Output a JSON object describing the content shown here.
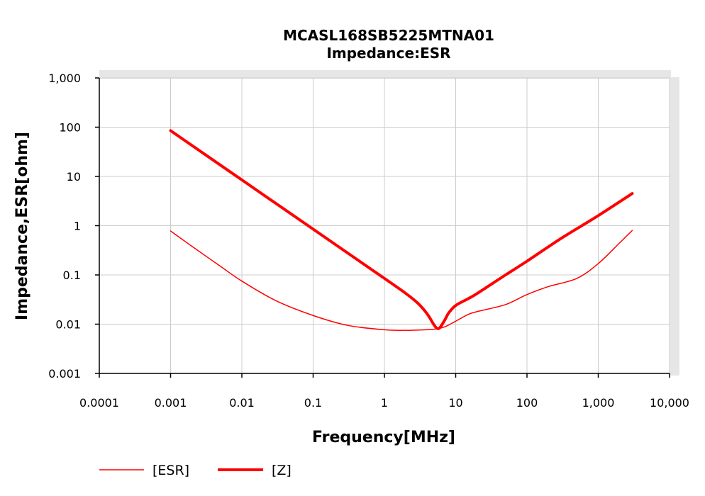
{
  "chart_data": {
    "type": "line",
    "title": "MCASL168SB5225MTNA01",
    "subtitle": "Impedance:ESR",
    "xlabel": "Frequency[MHz]",
    "ylabel": "Impedance,ESR[ohm]",
    "xscale": "log",
    "yscale": "log",
    "xlim": [
      0.0001,
      10000
    ],
    "ylim": [
      0.001,
      1000
    ],
    "x_ticks": [
      0.0001,
      0.001,
      0.01,
      0.1,
      1,
      10,
      100,
      1000,
      10000
    ],
    "x_tick_labels": [
      "0.0001",
      "0.001",
      "0.01",
      "0.1",
      "1",
      "10",
      "100",
      "1,000",
      "10,000"
    ],
    "y_ticks": [
      0.001,
      0.01,
      0.1,
      1,
      10,
      100,
      1000
    ],
    "y_tick_labels": [
      "0.001",
      "0.01",
      "0.1",
      "1",
      "10",
      "100",
      "1,000"
    ],
    "grid": true,
    "legend_position": "bottom-left",
    "series": [
      {
        "name": "[ESR]",
        "color": "#ff0000",
        "line_style": "thin",
        "x": [
          0.001,
          0.002,
          0.005,
          0.01,
          0.03,
          0.1,
          0.3,
          1,
          2,
          3,
          5,
          7,
          10,
          15,
          20,
          50,
          100,
          200,
          500,
          1000,
          2000,
          3000
        ],
        "y": [
          0.78,
          0.38,
          0.15,
          0.075,
          0.03,
          0.015,
          0.0095,
          0.0077,
          0.0075,
          0.0076,
          0.0079,
          0.0088,
          0.0115,
          0.0158,
          0.018,
          0.025,
          0.04,
          0.058,
          0.085,
          0.17,
          0.45,
          0.8
        ]
      },
      {
        "name": "[Z]",
        "color": "#ff0000",
        "line_style": "thick",
        "x": [
          0.001,
          0.01,
          0.1,
          1,
          2,
          3,
          4,
          5,
          5.5,
          6,
          7,
          8,
          10,
          15,
          20,
          50,
          100,
          300,
          1000,
          3000
        ],
        "y": [
          85,
          8.5,
          0.85,
          0.085,
          0.042,
          0.026,
          0.016,
          0.0095,
          0.0082,
          0.0085,
          0.012,
          0.017,
          0.024,
          0.033,
          0.042,
          0.1,
          0.19,
          0.55,
          1.6,
          4.5
        ]
      }
    ]
  }
}
